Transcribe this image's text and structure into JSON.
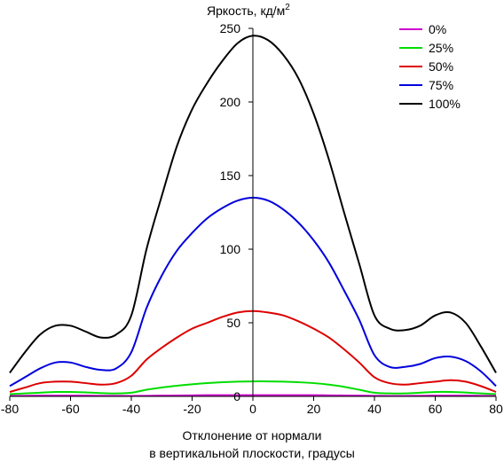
{
  "chart_data": {
    "type": "line",
    "title": "",
    "ylabel_main": "Яркость, кд/м",
    "ylabel_sup": "2",
    "xlabel_line1": "Отклонение от нормали",
    "xlabel_line2": "в вертикальной плоскости, градусы",
    "xlim": [
      -80,
      80
    ],
    "ylim": [
      0,
      250
    ],
    "xticks": [
      -80,
      -60,
      -40,
      -20,
      0,
      20,
      40,
      60,
      80
    ],
    "yticks": [
      0,
      50,
      100,
      150,
      200,
      250
    ],
    "x": [
      -80,
      -75,
      -70,
      -65,
      -60,
      -55,
      -50,
      -45,
      -40,
      -35,
      -30,
      -25,
      -20,
      -15,
      -10,
      -5,
      0,
      5,
      10,
      15,
      20,
      25,
      30,
      35,
      40,
      45,
      50,
      55,
      60,
      65,
      70,
      75,
      80
    ],
    "series": [
      {
        "name": "0%",
        "color": "#cc00cc",
        "values": [
          0.3,
          0.4,
          0.5,
          0.5,
          0.5,
          0.5,
          0.4,
          0.4,
          0.3,
          0.4,
          0.5,
          0.6,
          0.7,
          0.8,
          0.8,
          0.8,
          0.8,
          0.8,
          0.8,
          0.8,
          0.8,
          0.7,
          0.6,
          0.5,
          0.4,
          0.3,
          0.3,
          0.4,
          0.5,
          0.5,
          0.5,
          0.4,
          0.3
        ]
      },
      {
        "name": "25%",
        "color": "#00dd00",
        "values": [
          1.5,
          2.0,
          2.5,
          3.0,
          3.0,
          2.7,
          2.2,
          2.0,
          2.5,
          4.5,
          6.0,
          7.2,
          8.2,
          9.0,
          9.6,
          10.0,
          10.2,
          10.2,
          10.0,
          9.6,
          9.0,
          8.0,
          6.5,
          4.5,
          2.5,
          2.0,
          2.0,
          2.5,
          3.0,
          3.0,
          2.6,
          2.0,
          1.5
        ]
      },
      {
        "name": "50%",
        "color": "#dd0000",
        "values": [
          3,
          6,
          9,
          10,
          10,
          9,
          8,
          9,
          14,
          25,
          33,
          40,
          46,
          50,
          54,
          57,
          58,
          57,
          55,
          51,
          46,
          40,
          32,
          23,
          13,
          9,
          8,
          9,
          10,
          11,
          10,
          7,
          3
        ]
      },
      {
        "name": "75%",
        "color": "#0000dd",
        "values": [
          7,
          13,
          19,
          23,
          23,
          20,
          18,
          19,
          30,
          60,
          82,
          99,
          111,
          121,
          128,
          133,
          135,
          133,
          127,
          118,
          106,
          91,
          72,
          52,
          28,
          20,
          20,
          22,
          26,
          27,
          24,
          17,
          7
        ]
      },
      {
        "name": "100%",
        "color": "#000000",
        "values": [
          16,
          30,
          42,
          48,
          48,
          44,
          40,
          42,
          55,
          100,
          136,
          170,
          195,
          213,
          228,
          240,
          245,
          242,
          232,
          216,
          192,
          161,
          125,
          90,
          55,
          46,
          45,
          48,
          55,
          57,
          50,
          34,
          16
        ]
      }
    ]
  }
}
